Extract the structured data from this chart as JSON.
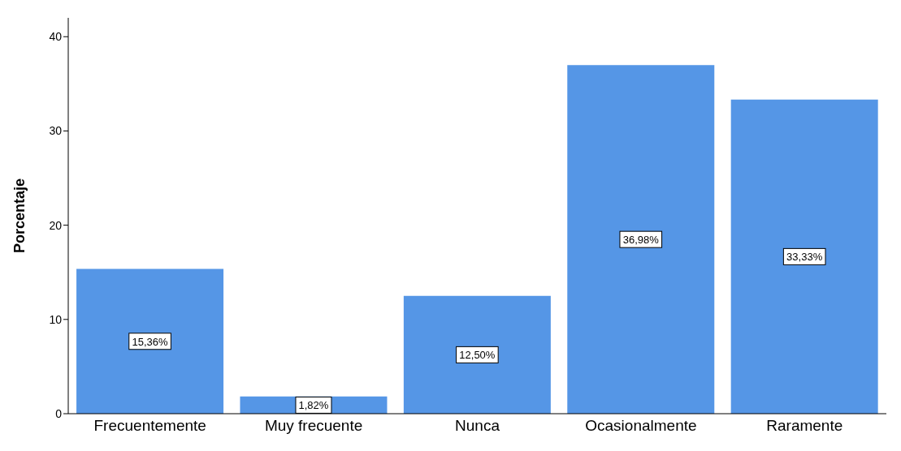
{
  "chart_data": {
    "type": "bar",
    "ylabel": "Porcentaje",
    "categories": [
      "Frecuentemente",
      "Muy frecuente",
      "Nunca",
      "Ocasionalmente",
      "Raramente"
    ],
    "values": [
      15.36,
      1.82,
      12.5,
      36.98,
      33.33
    ],
    "value_labels": [
      "15,36%",
      "1,82%",
      "12,50%",
      "36,98%",
      "33,33%"
    ],
    "color": "#5596e6",
    "ylim": [
      0,
      42
    ],
    "yticks": [
      0,
      10,
      20,
      30,
      40
    ],
    "grid": false,
    "legend": false
  }
}
